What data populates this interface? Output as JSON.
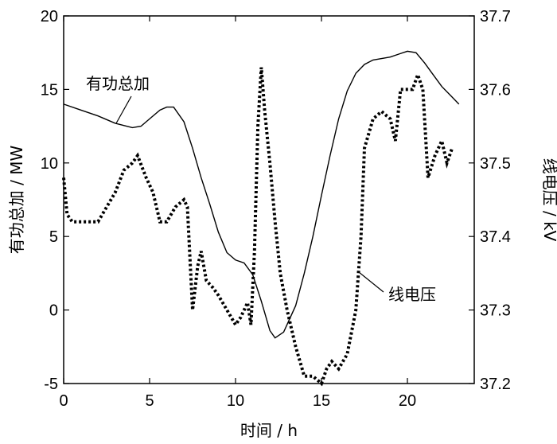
{
  "chart_data": {
    "type": "line",
    "xlabel": "时间 / h",
    "ylabel_left": "有功总加 / MW",
    "ylabel_right": "线电压 / kV",
    "xlim": [
      0,
      24
    ],
    "ylim_left": [
      -5,
      20
    ],
    "ylim_right": [
      37.2,
      37.7
    ],
    "x_ticks": [
      "0",
      "5",
      "10",
      "15",
      "20"
    ],
    "y_left_ticks": [
      "-5",
      "0",
      "5",
      "10",
      "15",
      "20"
    ],
    "y_right_ticks": [
      "37.2",
      "37.3",
      "37.4",
      "37.5",
      "37.6",
      "37.7"
    ],
    "grid": false,
    "series": [
      {
        "name": "有功总加",
        "axis": "left",
        "style": "solid",
        "points": [
          [
            0,
            14.0
          ],
          [
            1,
            13.6
          ],
          [
            2,
            13.2
          ],
          [
            3,
            12.7
          ],
          [
            4,
            12.4
          ],
          [
            4.5,
            12.5
          ],
          [
            5,
            13.0
          ],
          [
            5.6,
            13.6
          ],
          [
            6,
            13.8
          ],
          [
            6.4,
            13.8
          ],
          [
            7,
            12.8
          ],
          [
            7.5,
            11.0
          ],
          [
            8,
            9.0
          ],
          [
            8.5,
            7.2
          ],
          [
            9,
            5.3
          ],
          [
            9.5,
            3.9
          ],
          [
            10,
            3.4
          ],
          [
            10.5,
            3.2
          ],
          [
            11,
            2.4
          ],
          [
            11.5,
            0.6
          ],
          [
            12,
            -1.4
          ],
          [
            12.3,
            -1.9
          ],
          [
            12.8,
            -1.5
          ],
          [
            13.5,
            0.3
          ],
          [
            14,
            2.5
          ],
          [
            14.5,
            5.0
          ],
          [
            15,
            7.8
          ],
          [
            15.5,
            10.5
          ],
          [
            16,
            13.0
          ],
          [
            16.5,
            14.9
          ],
          [
            17,
            16.1
          ],
          [
            17.5,
            16.7
          ],
          [
            18,
            17.0
          ],
          [
            18.5,
            17.1
          ],
          [
            19,
            17.2
          ],
          [
            19.5,
            17.4
          ],
          [
            20,
            17.6
          ],
          [
            20.5,
            17.5
          ],
          [
            21,
            16.8
          ],
          [
            21.5,
            16.0
          ],
          [
            22,
            15.2
          ],
          [
            22.5,
            14.6
          ],
          [
            23,
            14.0
          ]
        ]
      },
      {
        "name": "线电压",
        "axis": "right",
        "style": "dotted",
        "points": [
          [
            0,
            37.48
          ],
          [
            0.2,
            37.43
          ],
          [
            0.5,
            37.42
          ],
          [
            1,
            37.42
          ],
          [
            1.5,
            37.42
          ],
          [
            2,
            37.42
          ],
          [
            2.5,
            37.44
          ],
          [
            3,
            37.46
          ],
          [
            3.5,
            37.49
          ],
          [
            4,
            37.5
          ],
          [
            4.3,
            37.51
          ],
          [
            4.8,
            37.48
          ],
          [
            5.2,
            37.46
          ],
          [
            5.6,
            37.42
          ],
          [
            6,
            37.42
          ],
          [
            6.5,
            37.44
          ],
          [
            7,
            37.45
          ],
          [
            7.2,
            37.44
          ],
          [
            7.5,
            37.3
          ],
          [
            7.8,
            37.36
          ],
          [
            8,
            37.38
          ],
          [
            8.3,
            37.34
          ],
          [
            8.7,
            37.33
          ],
          [
            9,
            37.32
          ],
          [
            9.5,
            37.3
          ],
          [
            10,
            37.28
          ],
          [
            10.3,
            37.29
          ],
          [
            10.7,
            37.31
          ],
          [
            10.9,
            37.28
          ],
          [
            11.1,
            37.38
          ],
          [
            11.3,
            37.55
          ],
          [
            11.5,
            37.63
          ],
          [
            11.7,
            37.57
          ],
          [
            12,
            37.5
          ],
          [
            12.3,
            37.42
          ],
          [
            12.6,
            37.35
          ],
          [
            13,
            37.3
          ],
          [
            13.5,
            37.25
          ],
          [
            14,
            37.21
          ],
          [
            14.5,
            37.21
          ],
          [
            15,
            37.2
          ],
          [
            15.3,
            37.22
          ],
          [
            15.6,
            37.23
          ],
          [
            16,
            37.22
          ],
          [
            16.5,
            37.24
          ],
          [
            17,
            37.3
          ],
          [
            17.3,
            37.4
          ],
          [
            17.5,
            37.52
          ],
          [
            18,
            37.56
          ],
          [
            18.5,
            37.57
          ],
          [
            19,
            37.56
          ],
          [
            19.3,
            37.53
          ],
          [
            19.6,
            37.6
          ],
          [
            20,
            37.6
          ],
          [
            20.3,
            37.6
          ],
          [
            20.6,
            37.62
          ],
          [
            20.9,
            37.6
          ],
          [
            21.2,
            37.48
          ],
          [
            21.6,
            37.51
          ],
          [
            22,
            37.53
          ],
          [
            22.3,
            37.5
          ],
          [
            22.6,
            37.52
          ]
        ]
      }
    ],
    "annotations": [
      {
        "text": "有功总加",
        "x": 2.4,
        "y": 13.2,
        "axis": "left"
      },
      {
        "text": "线电压",
        "x": 18.3,
        "y": 37.4,
        "axis": "right"
      }
    ]
  }
}
